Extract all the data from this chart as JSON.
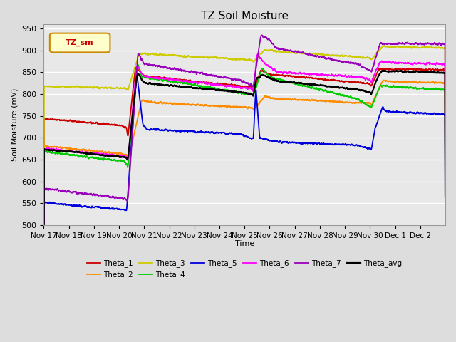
{
  "title": "TZ Soil Moisture",
  "ylabel": "Soil Moisture (mV)",
  "xlabel": "Time",
  "ylim": [
    500,
    960
  ],
  "yticks": [
    500,
    550,
    600,
    650,
    700,
    750,
    800,
    850,
    900,
    950
  ],
  "x_labels": [
    "Nov 17",
    "Nov 18",
    "Nov 19",
    "Nov 20",
    "Nov 21",
    "Nov 22",
    "Nov 23",
    "Nov 24",
    "Nov 25",
    "Nov 26",
    "Nov 27",
    "Nov 28",
    "Nov 29",
    "Nov 30",
    "Dec 1",
    "Dec 2"
  ],
  "legend_label": "TZ_sm",
  "series_colors": {
    "Theta_1": "#cc0000",
    "Theta_2": "#ff8c00",
    "Theta_3": "#cccc00",
    "Theta_4": "#00cc00",
    "Theta_5": "#0000dd",
    "Theta_6": "#ff00ff",
    "Theta_7": "#9900bb",
    "Theta_avg": "#000000"
  },
  "bg_color": "#dddddd",
  "plot_bg": "#e8e8e8",
  "legend_box_color": "#ffffcc",
  "legend_box_edge": "#cc8800",
  "irr1": 3.3,
  "irr2": 8.3,
  "irr3": 13.0
}
